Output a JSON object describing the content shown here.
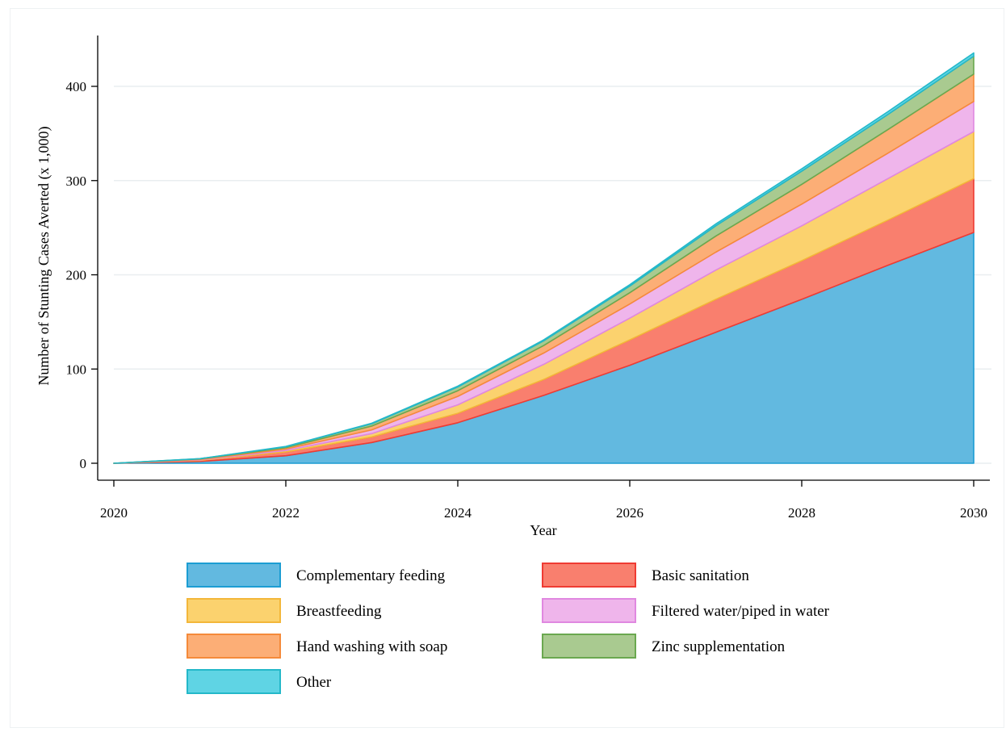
{
  "chart_data": {
    "type": "area",
    "stacked": true,
    "xlabel": "Year",
    "ylabel": "Number of Stunting Cases Averted (x 1,000)",
    "xlim": [
      2020,
      2030
    ],
    "ylim": [
      0,
      450
    ],
    "x_ticks": [
      2020,
      2022,
      2024,
      2026,
      2028,
      2030
    ],
    "y_ticks": [
      0,
      100,
      200,
      300,
      400
    ],
    "grid": true,
    "legend_position": "bottom",
    "x": [
      2020,
      2021,
      2022,
      2023,
      2024,
      2025,
      2026,
      2027,
      2028,
      2029,
      2030
    ],
    "series": [
      {
        "name": "Complementary feeding",
        "color": "#62b9e0",
        "edge": "#1c9dd3",
        "values": [
          0,
          2,
          8,
          22,
          43,
          72,
          104,
          139,
          174,
          210,
          245
        ]
      },
      {
        "name": "Basic sanitation",
        "color": "#f97f6e",
        "edge": "#ef3b33",
        "values": [
          0,
          1,
          4,
          6,
          10,
          17,
          27,
          35,
          41,
          48,
          57
        ]
      },
      {
        "name": "Breastfeeding",
        "color": "#fbd26e",
        "edge": "#f3b73a",
        "values": [
          0,
          0.5,
          1.5,
          3.5,
          9,
          16,
          23,
          31,
          37,
          44,
          50
        ]
      },
      {
        "name": "Filtered water/piped in water",
        "color": "#efb5eb",
        "edge": "#e088e0",
        "values": [
          0,
          0.5,
          1.5,
          4,
          9,
          12,
          15,
          19,
          23,
          27,
          32
        ]
      },
      {
        "name": "Hand washing with soap",
        "color": "#fcae76",
        "edge": "#f58a3a",
        "values": [
          0,
          0.5,
          1.5,
          4,
          6,
          8,
          12,
          17,
          21,
          25,
          29
        ]
      },
      {
        "name": "Zinc supplementation",
        "color": "#a9ca90",
        "edge": "#6aa84f",
        "values": [
          0,
          0.3,
          1,
          2.5,
          4,
          5,
          7,
          11,
          14,
          16,
          19
        ]
      },
      {
        "name": "Other",
        "color": "#5fd4e4",
        "edge": "#24b8c9",
        "values": [
          0,
          0.1,
          0.3,
          0.5,
          0.8,
          1,
          1.5,
          2,
          2.5,
          3,
          3.5
        ]
      }
    ],
    "legend_order": [
      "Complementary feeding",
      "Basic sanitation",
      "Breastfeeding",
      "Filtered water/piped in water",
      "Hand washing with soap",
      "Zinc supplementation",
      "Other"
    ]
  }
}
